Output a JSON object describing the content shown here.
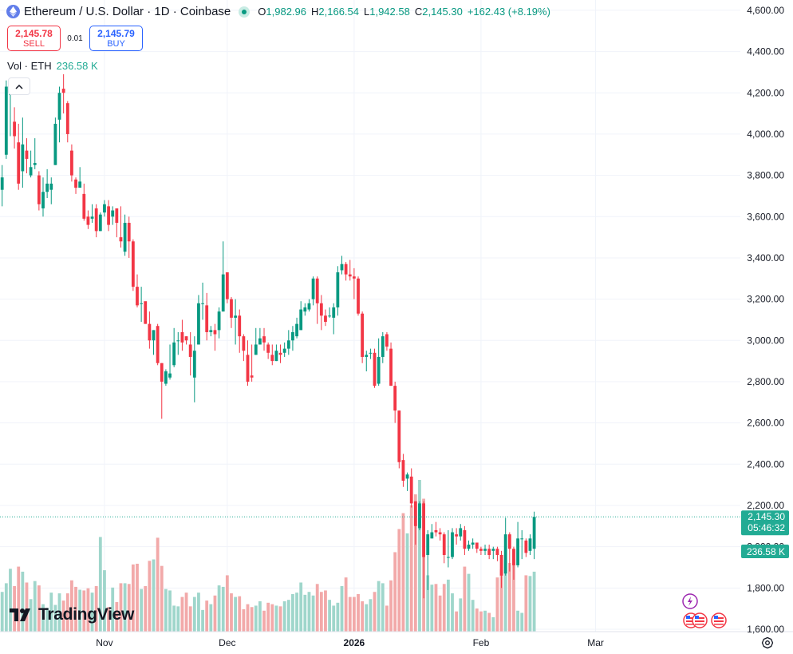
{
  "legend": {
    "symbol_title": "Ethereum / U.S. Dollar · 1D · Coinbase",
    "o_label": "O",
    "o_value": "1,982.96",
    "h_label": "H",
    "h_value": "2,166.54",
    "l_label": "L",
    "l_value": "1,942.58",
    "c_label": "C",
    "c_value": "2,145.30",
    "change": "+162.43 (+8.19%)"
  },
  "trade": {
    "sell_price": "2,145.78",
    "sell_label": "SELL",
    "spread": "0.01",
    "buy_price": "2,145.79",
    "buy_label": "BUY"
  },
  "volume_legend": {
    "label": "Vol · ETH",
    "value": "236.58 K"
  },
  "price_tag": {
    "price": "2,145.30",
    "countdown": "05:46:32"
  },
  "volume_tag": "236.58 K",
  "brand": {
    "name": "TradingView"
  },
  "icons": {
    "symbol": "ethereum-icon",
    "status": "market-open-dot",
    "collapse": "chevron-up-icon",
    "settings": "settings-icon",
    "events": "us-flag-icon"
  },
  "colors": {
    "up": "#089981",
    "down": "#f23645",
    "up_vol": "#9fd6cb",
    "down_vol": "#f2a9a9",
    "grid": "#f0f3fa",
    "text": "#131722",
    "price_line": "#22ab94"
  },
  "chart_data": {
    "type": "candlestick",
    "y_ticks": [
      1600,
      1800,
      2000,
      2200,
      2400,
      2600,
      2800,
      3000,
      3200,
      3400,
      3600,
      3800,
      4000,
      4200,
      4400,
      4600
    ],
    "y_tick_labels": [
      "1,600.00",
      "1,800.00",
      "2,000.00",
      "2,200.00",
      "2,400.00",
      "2,600.00",
      "2,800.00",
      "3,000.00",
      "3,200.00",
      "3,400.00",
      "3,600.00",
      "3,800.00",
      "4,000.00",
      "4,200.00",
      "4,400.00",
      "4,600.00"
    ],
    "x_ticks": [
      {
        "label": "Nov",
        "index": 25,
        "bold": false
      },
      {
        "label": "Dec",
        "index": 55,
        "bold": false
      },
      {
        "label": "2026",
        "index": 86,
        "bold": true
      },
      {
        "label": "Feb",
        "index": 117,
        "bold": false
      },
      {
        "label": "Mar",
        "index": 145,
        "bold": false
      }
    ],
    "ylim": [
      1480,
      4650
    ],
    "candles": [
      [
        3730,
        3790,
        3650,
        3850,
        5.5
      ],
      [
        3900,
        4230,
        3880,
        4260,
        6.7
      ],
      [
        4190,
        4210,
        3990,
        4250,
        8.7
      ],
      [
        4060,
        3990,
        3930,
        4130,
        6.3
      ],
      [
        3960,
        3760,
        3730,
        4050,
        9.0
      ],
      [
        3820,
        3950,
        3740,
        4080,
        8.3
      ],
      [
        3920,
        3880,
        3810,
        3980,
        6.8
      ],
      [
        3800,
        3840,
        3790,
        3920,
        4.5
      ],
      [
        3850,
        3860,
        3830,
        3980,
        7.0
      ],
      [
        3800,
        3660,
        3630,
        3820,
        6.4
      ],
      [
        3640,
        3720,
        3600,
        3790,
        3.8
      ],
      [
        3720,
        3760,
        3690,
        3830,
        3.3
      ],
      [
        3730,
        3760,
        3660,
        3790,
        5.4
      ],
      [
        3850,
        4050,
        3850,
        4080,
        3.7
      ],
      [
        4070,
        4200,
        3960,
        4230,
        5.3
      ],
      [
        4220,
        4200,
        4100,
        4290,
        4.3
      ],
      [
        4150,
        4000,
        3960,
        4160,
        5.3
      ],
      [
        3920,
        3800,
        3770,
        3950,
        7.1
      ],
      [
        3780,
        3740,
        3710,
        3790,
        6.2
      ],
      [
        3740,
        3770,
        3750,
        3840,
        5.8
      ],
      [
        3710,
        3590,
        3580,
        3760,
        5.7
      ],
      [
        3600,
        3560,
        3540,
        3630,
        6.0
      ],
      [
        3590,
        3600,
        3570,
        3660,
        5.4
      ],
      [
        3640,
        3530,
        3500,
        3660,
        6.3
      ],
      [
        3530,
        3610,
        3530,
        3620,
        13.1
      ],
      [
        3620,
        3660,
        3600,
        3680,
        8.5
      ],
      [
        3650,
        3560,
        3530,
        3680,
        3.4
      ],
      [
        3600,
        3630,
        3560,
        3650,
        6.1
      ],
      [
        3640,
        3570,
        3500,
        3640,
        4.1
      ],
      [
        3500,
        3480,
        3450,
        3650,
        6.7
      ],
      [
        3430,
        3570,
        3410,
        3610,
        6.7
      ],
      [
        3570,
        3480,
        3400,
        3600,
        6.6
      ],
      [
        3480,
        3260,
        3240,
        3490,
        9.3
      ],
      [
        3260,
        3170,
        3160,
        3320,
        9.4
      ],
      [
        3180,
        3180,
        3090,
        3260,
        5.9
      ],
      [
        3190,
        3080,
        3080,
        3170,
        6.3
      ],
      [
        3080,
        3000,
        2960,
        3140,
        9.8
      ],
      [
        3000,
        3050,
        2930,
        3050,
        10.0
      ],
      [
        3070,
        2890,
        2880,
        3080,
        13.0
      ],
      [
        2890,
        2800,
        2620,
        2890,
        9.1
      ],
      [
        2790,
        2850,
        2780,
        2860,
        5.9
      ],
      [
        2820,
        2840,
        2810,
        2980,
        5.7
      ],
      [
        2880,
        2990,
        2870,
        3060,
        3.6
      ],
      [
        3000,
        3000,
        2930,
        3040,
        3.5
      ],
      [
        3040,
        2990,
        2950,
        3100,
        4.8
      ],
      [
        3020,
        3000,
        2980,
        3020,
        5.4
      ],
      [
        2980,
        2920,
        2830,
        3040,
        3.5
      ],
      [
        2820,
        2950,
        2700,
        3020,
        4.8
      ],
      [
        2980,
        3180,
        2980,
        3220,
        5.4
      ],
      [
        3180,
        3180,
        3100,
        3280,
        3.0
      ],
      [
        3170,
        3040,
        3000,
        3230,
        4.3
      ],
      [
        3040,
        3050,
        3020,
        3070,
        3.8
      ],
      [
        3050,
        3030,
        2950,
        3080,
        5.0
      ],
      [
        3050,
        3140,
        3010,
        3160,
        6.4
      ],
      [
        3140,
        3320,
        3140,
        3480,
        6.2
      ],
      [
        3330,
        3200,
        3180,
        3310,
        7.8
      ],
      [
        3200,
        3110,
        3060,
        3210,
        5.3
      ],
      [
        3110,
        3120,
        2980,
        3200,
        4.8
      ],
      [
        3120,
        3020,
        2940,
        3150,
        4.9
      ],
      [
        3020,
        2950,
        2900,
        3030,
        3.1
      ],
      [
        2930,
        2800,
        2780,
        3000,
        3.8
      ],
      [
        2830,
        2820,
        2800,
        2980,
        3.4
      ],
      [
        2930,
        2980,
        2930,
        3060,
        3.6
      ],
      [
        2980,
        3010,
        2980,
        3060,
        4.2
      ],
      [
        3020,
        2990,
        2950,
        3060,
        2.9
      ],
      [
        2980,
        2940,
        2910,
        2990,
        4.0
      ],
      [
        2930,
        2900,
        2880,
        2980,
        3.8
      ],
      [
        2900,
        2950,
        2900,
        2980,
        3.6
      ],
      [
        2940,
        2930,
        2890,
        2980,
        3.5
      ],
      [
        2940,
        2960,
        2920,
        2990,
        4.2
      ],
      [
        2960,
        3000,
        2930,
        3050,
        4.4
      ],
      [
        3000,
        3040,
        2950,
        3070,
        5.2
      ],
      [
        3020,
        3080,
        3010,
        3110,
        5.4
      ],
      [
        3050,
        3150,
        3050,
        3190,
        6.8
      ],
      [
        3140,
        3160,
        3120,
        3180,
        5.1
      ],
      [
        3150,
        3180,
        3140,
        3200,
        5.5
      ],
      [
        3200,
        3300,
        3170,
        3310,
        5.0
      ],
      [
        3300,
        3180,
        3080,
        3310,
        6.6
      ],
      [
        3180,
        3120,
        3050,
        3220,
        5.5
      ],
      [
        3120,
        3090,
        3070,
        3150,
        5.7
      ],
      [
        3120,
        3120,
        3110,
        3160,
        4.4
      ],
      [
        3110,
        3160,
        3030,
        3180,
        3.6
      ],
      [
        3160,
        3330,
        3120,
        3360,
        4.0
      ],
      [
        3340,
        3370,
        3320,
        3410,
        6.3
      ],
      [
        3370,
        3320,
        3290,
        3380,
        7.5
      ],
      [
        3320,
        3310,
        3290,
        3390,
        4.8
      ],
      [
        3310,
        3300,
        3200,
        3350,
        4.8
      ],
      [
        3300,
        3130,
        3120,
        3310,
        5.2
      ],
      [
        3130,
        2920,
        2890,
        3140,
        4.2
      ],
      [
        2920,
        2930,
        2850,
        2950,
        3.8
      ],
      [
        2940,
        2940,
        2910,
        2960,
        4.5
      ],
      [
        2940,
        2780,
        2770,
        2960,
        5.5
      ],
      [
        2790,
        2920,
        2780,
        3010,
        7.0
      ],
      [
        2920,
        3020,
        2890,
        3040,
        6.7
      ],
      [
        3030,
        2970,
        2950,
        3040,
        3.6
      ],
      [
        2960,
        2780,
        2780,
        2990,
        7.1
      ],
      [
        2780,
        2660,
        2600,
        2800,
        11.0
      ],
      [
        2660,
        2410,
        2380,
        2660,
        14.2
      ],
      [
        2420,
        2320,
        2290,
        2450,
        16.4
      ],
      [
        2330,
        2350,
        2270,
        2360,
        13.6
      ],
      [
        2340,
        2210,
        2190,
        2380,
        17.5
      ],
      [
        2220,
        2100,
        2010,
        2220,
        19.0
      ],
      [
        2090,
        2210,
        2080,
        2220,
        21.0
      ],
      [
        2210,
        1950,
        1750,
        2220,
        18.4
      ],
      [
        1960,
        2060,
        1790,
        2080,
        7.8
      ],
      [
        2040,
        2070,
        2040,
        2110,
        6.5
      ],
      [
        2080,
        2070,
        2050,
        2120,
        6.6
      ],
      [
        2070,
        2060,
        2030,
        2090,
        5.0
      ],
      [
        2060,
        1960,
        1920,
        2070,
        6.6
      ],
      [
        1950,
        1950,
        1900,
        2080,
        7.2
      ],
      [
        1950,
        2070,
        1940,
        2090,
        5.3
      ],
      [
        2060,
        2050,
        2010,
        2090,
        2.8
      ],
      [
        2050,
        2090,
        2030,
        2110,
        4.6
      ],
      [
        2080,
        1990,
        1960,
        2100,
        9.0
      ],
      [
        1990,
        2010,
        1980,
        2030,
        8.0
      ],
      [
        2010,
        2020,
        1990,
        2040,
        4.4
      ],
      [
        2020,
        1990,
        1970,
        2020,
        3.2
      ],
      [
        1990,
        1980,
        1960,
        2000,
        2.8
      ],
      [
        1980,
        1990,
        1960,
        2010,
        2.9
      ],
      [
        1990,
        1960,
        1940,
        2010,
        2.6
      ],
      [
        1980,
        1990,
        1940,
        2000,
        2.0
      ],
      [
        1990,
        1960,
        1930,
        2000,
        7.5
      ],
      [
        1960,
        1860,
        1800,
        1980,
        8.6
      ],
      [
        1870,
        2060,
        1860,
        2140,
        9.9
      ],
      [
        2060,
        1990,
        1880,
        2070,
        9.5
      ],
      [
        1990,
        1910,
        1840,
        2000,
        10.0
      ],
      [
        1910,
        2040,
        1900,
        2120,
        2.9
      ],
      [
        2040,
        2040,
        1940,
        2080,
        2.6
      ],
      [
        2030,
        1970,
        1950,
        2040,
        7.8
      ],
      [
        1980,
        2040,
        1960,
        2060,
        7.7
      ],
      [
        1990,
        2145,
        1940,
        2170,
        8.3
      ]
    ]
  }
}
